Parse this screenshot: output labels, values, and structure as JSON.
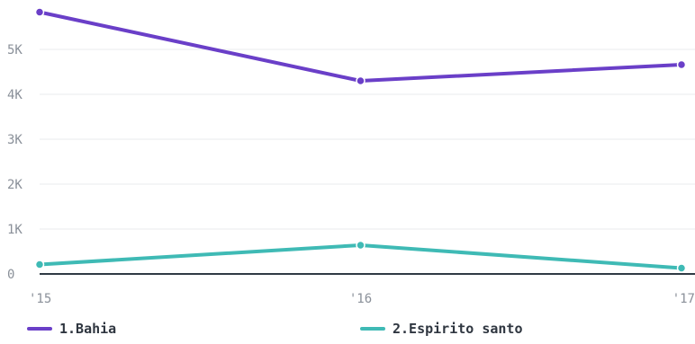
{
  "chart_data": {
    "type": "line",
    "title": "",
    "xlabel": "",
    "ylabel": "",
    "x": [
      "'15",
      "'16",
      "'17"
    ],
    "ylim": [
      0,
      6000
    ],
    "yticks": [
      0,
      1000,
      2000,
      3000,
      4000,
      5000
    ],
    "ytick_labels": [
      "0",
      "1K",
      "2K",
      "3K",
      "4K",
      "5K"
    ],
    "grid": true,
    "legend_position": "bottom",
    "series": [
      {
        "name": "1.Bahia",
        "color": "#6a3fc8",
        "values": [
          5830,
          4300,
          4660
        ]
      },
      {
        "name": "2.Espirito santo",
        "color": "#3fbab5",
        "values": [
          210,
          640,
          130
        ]
      }
    ]
  }
}
